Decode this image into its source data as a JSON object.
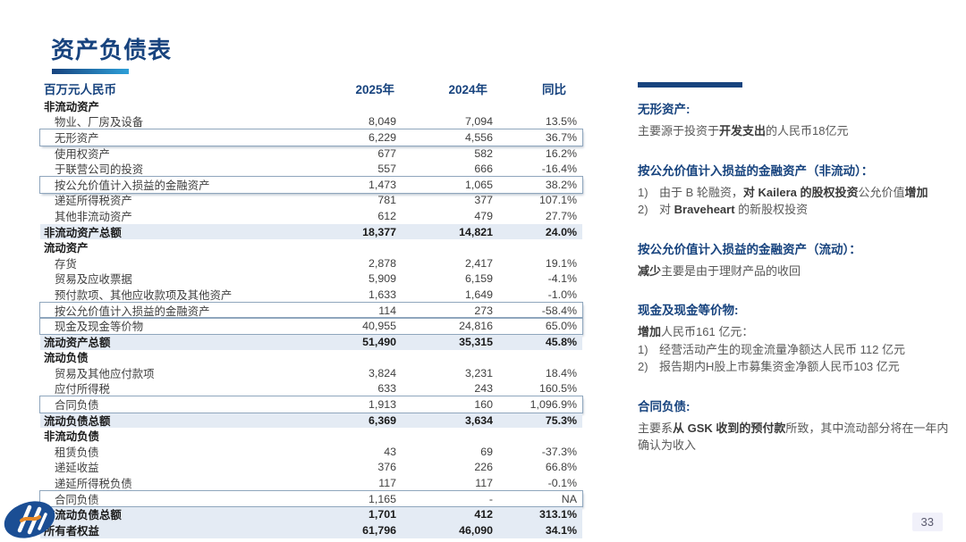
{
  "colors": {
    "accent_navy": "#17437E",
    "bar_gradient_end": "#2D9FD8",
    "total_row_bg": "#E4EBF4",
    "box_border": "#8FA6BD",
    "body_gray": "#595959",
    "logo_blue": "#1B4E94",
    "logo_orange": "#E88A28"
  },
  "header": {
    "title": "资产负债表"
  },
  "table": {
    "unit_label": "百万元人民币",
    "columns": [
      "2025年",
      "2024年",
      "同比"
    ],
    "rows": [
      {
        "type": "section",
        "label": "非流动资产",
        "v2025": "",
        "v2024": "",
        "yoy": ""
      },
      {
        "type": "item",
        "label": "物业、厂房及设备",
        "v2025": "8,049",
        "v2024": "7,094",
        "yoy": "13.5%"
      },
      {
        "type": "item",
        "boxed": true,
        "label": "无形资产",
        "v2025": "6,229",
        "v2024": "4,556",
        "yoy": "36.7%"
      },
      {
        "type": "item",
        "label": "使用权资产",
        "v2025": "677",
        "v2024": "582",
        "yoy": "16.2%"
      },
      {
        "type": "item",
        "label": "于联营公司的投资",
        "v2025": "557",
        "v2024": "666",
        "yoy": "-16.4%"
      },
      {
        "type": "item",
        "boxed": true,
        "label": "按公允价值计入损益的金融资产",
        "v2025": "1,473",
        "v2024": "1,065",
        "yoy": "38.2%"
      },
      {
        "type": "item",
        "label": "递延所得税资产",
        "v2025": "781",
        "v2024": "377",
        "yoy": "107.1%"
      },
      {
        "type": "item",
        "label": "其他非流动资产",
        "v2025": "612",
        "v2024": "479",
        "yoy": "27.7%"
      },
      {
        "type": "total",
        "label": "非流动资产总额",
        "v2025": "18,377",
        "v2024": "14,821",
        "yoy": "24.0%"
      },
      {
        "type": "section",
        "label": "流动资产",
        "v2025": "",
        "v2024": "",
        "yoy": ""
      },
      {
        "type": "item",
        "label": "存货",
        "v2025": "2,878",
        "v2024": "2,417",
        "yoy": "19.1%"
      },
      {
        "type": "item",
        "label": "贸易及应收票据",
        "v2025": "5,909",
        "v2024": "6,159",
        "yoy": "-4.1%"
      },
      {
        "type": "item",
        "label": "预付款项、其他应收款项及其他资产",
        "v2025": "1,633",
        "v2024": "1,649",
        "yoy": "-1.0%"
      },
      {
        "type": "item",
        "boxed": true,
        "label": "按公允价值计入损益的金融资产",
        "v2025": "114",
        "v2024": "273",
        "yoy": "-58.4%"
      },
      {
        "type": "item",
        "boxed": true,
        "label": "现金及现金等价物",
        "v2025": "40,955",
        "v2024": "24,816",
        "yoy": "65.0%"
      },
      {
        "type": "total",
        "label": "流动资产总额",
        "v2025": "51,490",
        "v2024": "35,315",
        "yoy": "45.8%"
      },
      {
        "type": "section",
        "label": "流动负债",
        "v2025": "",
        "v2024": "",
        "yoy": ""
      },
      {
        "type": "item",
        "label": "贸易及其他应付款项",
        "v2025": "3,824",
        "v2024": "3,231",
        "yoy": "18.4%"
      },
      {
        "type": "item",
        "label": "应付所得税",
        "v2025": "633",
        "v2024": "243",
        "yoy": "160.5%"
      },
      {
        "type": "item",
        "boxed": true,
        "label": "合同负债",
        "v2025": "1,913",
        "v2024": "160",
        "yoy": "1,096.9%"
      },
      {
        "type": "total",
        "label": "流动负债总额",
        "v2025": "6,369",
        "v2024": "3,634",
        "yoy": "75.3%"
      },
      {
        "type": "section",
        "label": "非流动负债",
        "v2025": "",
        "v2024": "",
        "yoy": ""
      },
      {
        "type": "item",
        "label": "租赁负债",
        "v2025": "43",
        "v2024": "69",
        "yoy": "-37.3%"
      },
      {
        "type": "item",
        "label": "递延收益",
        "v2025": "376",
        "v2024": "226",
        "yoy": "66.8%"
      },
      {
        "type": "item",
        "label": "递延所得税负债",
        "v2025": "117",
        "v2024": "117",
        "yoy": "-0.1%"
      },
      {
        "type": "item",
        "boxed": true,
        "label": "合同负债",
        "v2025": "1,165",
        "v2024": "-",
        "yoy": "NA"
      },
      {
        "type": "total",
        "label": "非流动负债总额",
        "v2025": "1,701",
        "v2024": "412",
        "yoy": "313.1%"
      },
      {
        "type": "total",
        "label": "所有者权益",
        "v2025": "61,796",
        "v2024": "46,090",
        "yoy": "34.1%"
      }
    ]
  },
  "notes": [
    {
      "heading": "无形资产:",
      "items": [
        {
          "marker": "",
          "segments": [
            {
              "t": "主要源于投资于"
            },
            {
              "t": "开发支出",
              "b": true
            },
            {
              "t": "的人民币18亿元"
            }
          ]
        }
      ]
    },
    {
      "heading": "按公允价值计入损益的金融资产（非流动）：",
      "items": [
        {
          "marker": "1)",
          "segments": [
            {
              "t": "由于 B 轮融资，"
            },
            {
              "t": "对 Kailera 的股权投资",
              "b": true
            },
            {
              "t": "公允价值"
            },
            {
              "t": "增加",
              "b": true
            }
          ]
        },
        {
          "marker": "2)",
          "segments": [
            {
              "t": "对 "
            },
            {
              "t": "Braveheart",
              "b": true
            },
            {
              "t": " 的新股权投资"
            }
          ]
        }
      ]
    },
    {
      "heading": "按公允价值计入损益的金融资产（流动）：",
      "items": [
        {
          "marker": "",
          "segments": [
            {
              "t": "减少",
              "b": true
            },
            {
              "t": "主要是由于理财产品的收回"
            }
          ]
        }
      ]
    },
    {
      "heading": "现金及现金等价物:",
      "items": [
        {
          "marker": "",
          "segments": [
            {
              "t": "增加",
              "b": true
            },
            {
              "t": "人民币161 亿元："
            }
          ]
        },
        {
          "marker": "1)",
          "segments": [
            {
              "t": "经营活动产生的现金流量净额达人民币 112 亿元"
            }
          ]
        },
        {
          "marker": "2)",
          "segments": [
            {
              "t": "报告期内H股上市募集资金净额人民币103 亿元"
            }
          ]
        }
      ]
    },
    {
      "heading": "合同负债:",
      "items": [
        {
          "marker": "",
          "segments": [
            {
              "t": "主要系"
            },
            {
              "t": "从 GSK 收到的预付款",
              "b": true
            },
            {
              "t": "所致，其中流动部分将在一年内确认为收入"
            }
          ]
        }
      ]
    }
  ],
  "footer": {
    "page_number": "33"
  }
}
